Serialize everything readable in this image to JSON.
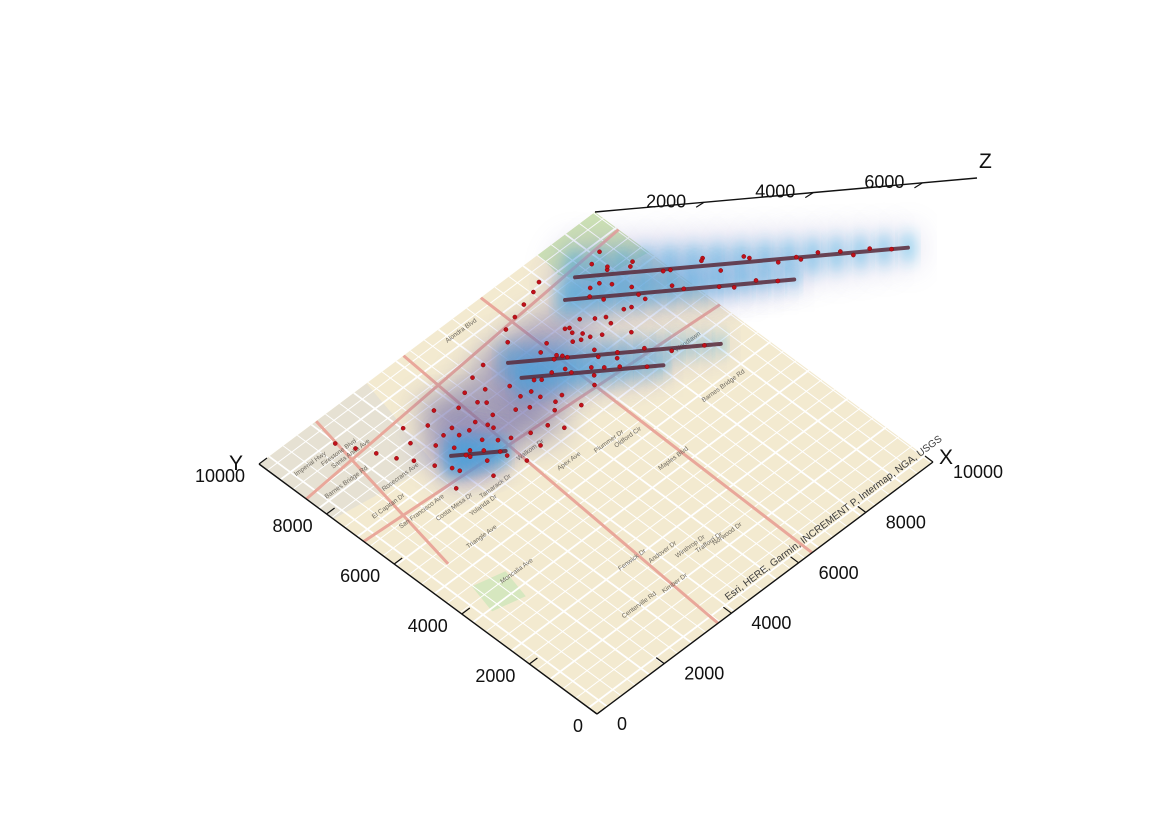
{
  "chart_data": {
    "type": "scatter",
    "subtype": "3d-scatter-with-density-over-basemap",
    "xlabel": "X",
    "ylabel": "Y",
    "zlabel": "Z",
    "xlim": [
      0,
      10000
    ],
    "ylim": [
      0,
      10000
    ],
    "zlim": [
      0,
      7000
    ],
    "x_ticks": [
      "0",
      "2000",
      "4000",
      "6000",
      "8000",
      "10000"
    ],
    "y_ticks": [
      "0",
      "2000",
      "4000",
      "6000",
      "8000",
      "10000"
    ],
    "z_ticks": [
      "2000",
      "4000",
      "6000"
    ],
    "grid": false,
    "point_color": "#c0101a",
    "density_color": "#23b3e8",
    "columns": [
      {
        "x": 8400,
        "y": 9000,
        "z_top": 6100
      },
      {
        "x": 7800,
        "y": 8700,
        "z_top": 4200
      },
      {
        "x": 5700,
        "y": 8300,
        "z_top": 3900
      },
      {
        "x": 5600,
        "y": 7800,
        "z_top": 2600
      },
      {
        "x": 3000,
        "y": 7300,
        "z_top": 1000
      }
    ],
    "points": [
      [
        8400,
        9000,
        5800
      ],
      [
        8450,
        9050,
        5400
      ],
      [
        8350,
        8950,
        5100
      ],
      [
        8500,
        9000,
        4800
      ],
      [
        8420,
        9100,
        4500
      ],
      [
        8300,
        9000,
        4200
      ],
      [
        8550,
        8900,
        3900
      ],
      [
        8450,
        8850,
        3600
      ],
      [
        8380,
        9150,
        3300
      ],
      [
        8600,
        9050,
        3000
      ],
      [
        8250,
        8900,
        2700
      ],
      [
        8500,
        9200,
        2400
      ],
      [
        8700,
        8950,
        2100
      ],
      [
        8200,
        9100,
        1800
      ],
      [
        8600,
        8800,
        1500
      ],
      [
        8350,
        9250,
        1200
      ],
      [
        8750,
        9100,
        900
      ],
      [
        8100,
        8950,
        600
      ],
      [
        8550,
        9300,
        400
      ],
      [
        8800,
        8850,
        250
      ],
      [
        7800,
        8700,
        3900
      ],
      [
        7850,
        8750,
        3500
      ],
      [
        7750,
        8650,
        3100
      ],
      [
        7900,
        8600,
        2700
      ],
      [
        7700,
        8800,
        2300
      ],
      [
        7950,
        8750,
        1900
      ],
      [
        7650,
        8600,
        1500
      ],
      [
        8000,
        8500,
        1100
      ],
      [
        7600,
        8900,
        700
      ],
      [
        8050,
        8850,
        400
      ],
      [
        5700,
        8300,
        3600
      ],
      [
        5650,
        8250,
        3000
      ],
      [
        5750,
        8350,
        2500
      ],
      [
        5600,
        8200,
        2000
      ],
      [
        5800,
        8150,
        1500
      ],
      [
        5550,
        8400,
        1000
      ],
      [
        5850,
        8450,
        600
      ],
      [
        5600,
        7800,
        2300
      ],
      [
        5650,
        7850,
        1800
      ],
      [
        5550,
        7700,
        1300
      ],
      [
        5700,
        7900,
        800
      ],
      [
        5500,
        7750,
        400
      ],
      [
        7200,
        8200,
        900
      ],
      [
        7400,
        8500,
        1200
      ],
      [
        7000,
        8600,
        700
      ],
      [
        6800,
        8300,
        500
      ],
      [
        7600,
        8100,
        300
      ],
      [
        6500,
        8700,
        800
      ],
      [
        6300,
        8400,
        400
      ],
      [
        6900,
        7900,
        200
      ],
      [
        7300,
        7700,
        150
      ],
      [
        6600,
        7600,
        100
      ],
      [
        5200,
        8000,
        600
      ],
      [
        4900,
        7700,
        350
      ],
      [
        4700,
        7400,
        200
      ],
      [
        5000,
        7200,
        150
      ],
      [
        5400,
        7000,
        250
      ],
      [
        4500,
        7900,
        100
      ],
      [
        4300,
        7600,
        150
      ],
      [
        4100,
        7300,
        100
      ],
      [
        3900,
        7000,
        120
      ],
      [
        3700,
        7600,
        90
      ],
      [
        3500,
        7900,
        80
      ],
      [
        3300,
        7200,
        100
      ],
      [
        3100,
        7500,
        120
      ],
      [
        2900,
        7800,
        90
      ],
      [
        2700,
        7100,
        80
      ],
      [
        3000,
        7300,
        900
      ],
      [
        3050,
        7350,
        600
      ],
      [
        2950,
        7250,
        350
      ],
      [
        3100,
        7200,
        150
      ],
      [
        2500,
        7400,
        70
      ],
      [
        2300,
        7800,
        60
      ],
      [
        2100,
        8100,
        50
      ],
      [
        1900,
        8500,
        50
      ],
      [
        1700,
        8900,
        40
      ],
      [
        1500,
        9300,
        40
      ],
      [
        2600,
        8200,
        60
      ],
      [
        2800,
        8600,
        50
      ],
      [
        3200,
        8300,
        70
      ],
      [
        3600,
        8500,
        60
      ],
      [
        4000,
        8200,
        80
      ],
      [
        4400,
        8400,
        70
      ],
      [
        4800,
        8600,
        90
      ],
      [
        5200,
        8700,
        100
      ],
      [
        6000,
        8800,
        120
      ],
      [
        6200,
        9100,
        150
      ],
      [
        6600,
        9200,
        130
      ],
      [
        7000,
        9300,
        110
      ],
      [
        7400,
        9400,
        100
      ],
      [
        7700,
        9500,
        80
      ],
      [
        6100,
        7500,
        60
      ],
      [
        6400,
        7200,
        50
      ],
      [
        6800,
        7000,
        45
      ],
      [
        7200,
        7300,
        40
      ],
      [
        7600,
        7500,
        60
      ],
      [
        8000,
        7800,
        70
      ],
      [
        8300,
        8200,
        90
      ],
      [
        8700,
        8400,
        120
      ],
      [
        9000,
        8800,
        100
      ],
      [
        9200,
        9200,
        80
      ],
      [
        4200,
        6800,
        50
      ],
      [
        4600,
        6600,
        40
      ],
      [
        5000,
        6500,
        45
      ],
      [
        5400,
        6700,
        50
      ],
      [
        5800,
        6900,
        60
      ],
      [
        3400,
        6700,
        45
      ],
      [
        3800,
        6500,
        40
      ],
      [
        2800,
        6900,
        35
      ],
      [
        2400,
        6600,
        30
      ],
      [
        3200,
        6300,
        35
      ],
      [
        4000,
        6100,
        30
      ],
      [
        4500,
        6200,
        35
      ],
      [
        5200,
        6200,
        40
      ],
      [
        5900,
        6400,
        45
      ],
      [
        6500,
        6600,
        40
      ],
      [
        7000,
        6800,
        35
      ],
      [
        7500,
        6900,
        30
      ],
      [
        8100,
        7100,
        40
      ],
      [
        8600,
        7600,
        45
      ],
      [
        9000,
        8000,
        50
      ],
      [
        5200,
        7600,
        300
      ],
      [
        5300,
        7300,
        220
      ],
      [
        4900,
        8100,
        400
      ],
      [
        4600,
        8300,
        260
      ],
      [
        4300,
        8100,
        180
      ],
      [
        6100,
        8100,
        520
      ],
      [
        6300,
        7900,
        380
      ],
      [
        6700,
        8100,
        600
      ],
      [
        6900,
        8400,
        450
      ],
      [
        7100,
        8000,
        320
      ],
      [
        3600,
        7300,
        200
      ],
      [
        3800,
        7800,
        260
      ],
      [
        4000,
        7500,
        180
      ],
      [
        3400,
        7700,
        150
      ],
      [
        3200,
        7900,
        110
      ]
    ],
    "attribution": "Esri, HERE, Garmin, INCREMENT P, Intermap, NGA, USGS",
    "basemap_labels": [
      "Imperial Hwy",
      "Firestone Blvd",
      "Alondra Blvd",
      "Barnes Bridge Rd",
      "Rosecrans Ave",
      "El Capitan Dr",
      "San Francisco Ave",
      "Costa Mesa Dr",
      "Yolanda Dr",
      "Tamarack Dr",
      "Triangle Ave",
      "Walkom Dr",
      "Apex Ave",
      "Plummer Dr",
      "Oldford Cir",
      "Maples Blvd",
      "Fenwick Dr",
      "Andover Dr",
      "Winthrop Dr",
      "Trafford Dr",
      "Norwood Dr",
      "Kimber Dr",
      "Centerville Rd",
      "Woodlawn",
      "Santa Anita Ave",
      "Barnes Bridge Rd",
      "Moncalia Ave"
    ]
  }
}
